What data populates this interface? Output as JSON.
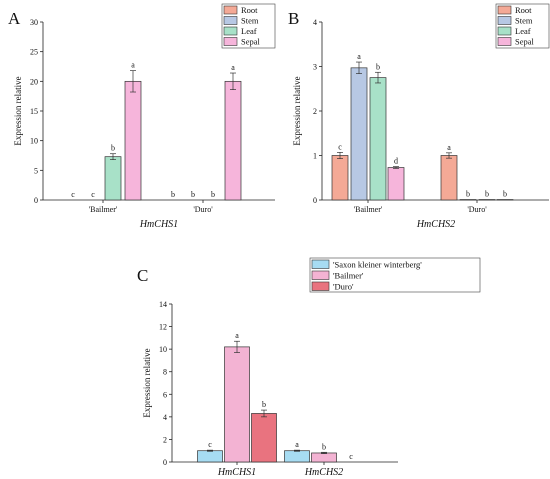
{
  "panels": [
    "A",
    "B",
    "C"
  ],
  "chart_data": [
    {
      "type": "bar",
      "panel": "A",
      "title": "",
      "xlabel": "HmCHS1",
      "ylabel": "Expression relative",
      "ylim": [
        0,
        30
      ],
      "yticks": [
        0,
        5,
        10,
        15,
        20,
        25,
        30
      ],
      "categories": [
        "'Bailmer'",
        "'Duro'"
      ],
      "series": [
        {
          "name": "Root",
          "color": "#f4a996",
          "values": [
            0,
            0
          ],
          "errors": [
            0,
            0
          ],
          "letters": [
            "c",
            "b"
          ]
        },
        {
          "name": "Stem",
          "color": "#b7c8e4",
          "values": [
            0,
            0
          ],
          "errors": [
            0,
            0
          ],
          "letters": [
            "c",
            "b"
          ]
        },
        {
          "name": "Leaf",
          "color": "#a8e1c8",
          "values": [
            7.3,
            0
          ],
          "errors": [
            0.5,
            0
          ],
          "letters": [
            "b",
            "b"
          ]
        },
        {
          "name": "Sepal",
          "color": "#f6b5db",
          "values": [
            20.0,
            20.0
          ],
          "errors": [
            1.8,
            1.4
          ],
          "letters": [
            "a",
            "a"
          ]
        }
      ],
      "legend": "top-right"
    },
    {
      "type": "bar",
      "panel": "B",
      "title": "",
      "xlabel": "HmCHS2",
      "ylabel": "Expression relative",
      "ylim": [
        0,
        4
      ],
      "yticks": [
        0,
        1,
        2,
        3,
        4
      ],
      "categories": [
        "'Bailmer'",
        "'Duro'"
      ],
      "series": [
        {
          "name": "Root",
          "color": "#f4a996",
          "values": [
            1.0,
            1.0
          ],
          "errors": [
            0.07,
            0.06
          ],
          "letters": [
            "c",
            "a"
          ]
        },
        {
          "name": "Stem",
          "color": "#b7c8e4",
          "values": [
            2.97,
            0.01
          ],
          "errors": [
            0.13,
            0
          ],
          "letters": [
            "a",
            "b"
          ]
        },
        {
          "name": "Leaf",
          "color": "#a8e1c8",
          "values": [
            2.75,
            0.01
          ],
          "errors": [
            0.12,
            0
          ],
          "letters": [
            "b",
            "b"
          ]
        },
        {
          "name": "Sepal",
          "color": "#f6b5db",
          "values": [
            0.73,
            0.01
          ],
          "errors": [
            0.02,
            0
          ],
          "letters": [
            "d",
            "b"
          ]
        }
      ],
      "legend": "top-right"
    },
    {
      "type": "bar",
      "panel": "C",
      "title": "",
      "xlabel": "",
      "ylabel": "Expression relative",
      "ylim": [
        0,
        14
      ],
      "yticks": [
        0,
        2,
        4,
        6,
        8,
        10,
        12,
        14
      ],
      "categories": [
        "HmCHS1",
        "HmCHS2"
      ],
      "series": [
        {
          "name": "'Saxon kleiner winterberg'",
          "color": "#a7dcf2",
          "values": [
            1.0,
            1.0
          ],
          "errors": [
            0.05,
            0.05
          ],
          "letters": [
            "c",
            "a"
          ]
        },
        {
          "name": "'Bailmer'",
          "color": "#f3b3d3",
          "values": [
            10.2,
            0.8
          ],
          "errors": [
            0.5,
            0.06
          ],
          "letters": [
            "a",
            "b"
          ]
        },
        {
          "name": "'Duro'",
          "color": "#e9737f",
          "values": [
            4.3,
            0.0
          ],
          "errors": [
            0.3,
            0
          ],
          "letters": [
            "b",
            "c"
          ]
        }
      ],
      "legend": "top-center"
    }
  ]
}
